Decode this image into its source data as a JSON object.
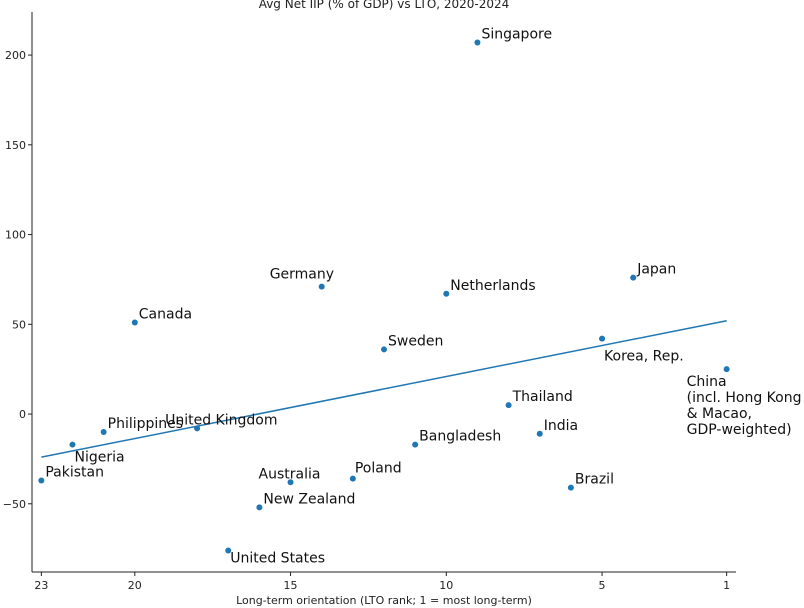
{
  "chart_data": {
    "type": "scatter",
    "title": "Avg Net IIP (% of GDP) vs LTO, 2020-2024",
    "xlabel": "Long-term orientation (LTO rank; 1 = most long-term)",
    "ylabel": "",
    "x_reversed": true,
    "xlim": [
      23.3,
      0.7
    ],
    "ylim": [
      -88,
      224
    ],
    "xticks": [
      23,
      20,
      15,
      10,
      5,
      1
    ],
    "yticks": [
      -50,
      0,
      50,
      100,
      150,
      200
    ],
    "grid": false,
    "point_color": "#1f77b4",
    "line_color": "#1f77b4",
    "points": [
      {
        "label": "Singapore",
        "x": 9,
        "y": 207
      },
      {
        "label": "Germany",
        "x": 14,
        "y": 71
      },
      {
        "label": "Netherlands",
        "x": 10,
        "y": 67
      },
      {
        "label": "Japan",
        "x": 4,
        "y": 76
      },
      {
        "label": "Canada",
        "x": 20,
        "y": 51
      },
      {
        "label": "Sweden",
        "x": 12,
        "y": 36
      },
      {
        "label": "Korea, Rep.",
        "x": 5,
        "y": 42
      },
      {
        "label": "China\n(incl. Hong Kong\n& Macao,\nGDP-weighted)",
        "x": 1,
        "y": 25
      },
      {
        "label": "Thailand",
        "x": 8,
        "y": 5
      },
      {
        "label": "Philippines",
        "x": 21,
        "y": -10
      },
      {
        "label": "United Kingdom",
        "x": 18,
        "y": -8
      },
      {
        "label": "India",
        "x": 7,
        "y": -11
      },
      {
        "label": "Nigeria",
        "x": 22,
        "y": -17
      },
      {
        "label": "Bangladesh",
        "x": 11,
        "y": -17
      },
      {
        "label": "Pakistan",
        "x": 23,
        "y": -37
      },
      {
        "label": "Australia",
        "x": 15,
        "y": -38
      },
      {
        "label": "Poland",
        "x": 13,
        "y": -36
      },
      {
        "label": "Brazil",
        "x": 6,
        "y": -41
      },
      {
        "label": "New Zealand",
        "x": 16,
        "y": -52
      },
      {
        "label": "United States",
        "x": 17,
        "y": -76
      }
    ],
    "trendline": [
      {
        "x": 23,
        "y": -24
      },
      {
        "x": 1,
        "y": 52
      }
    ]
  }
}
